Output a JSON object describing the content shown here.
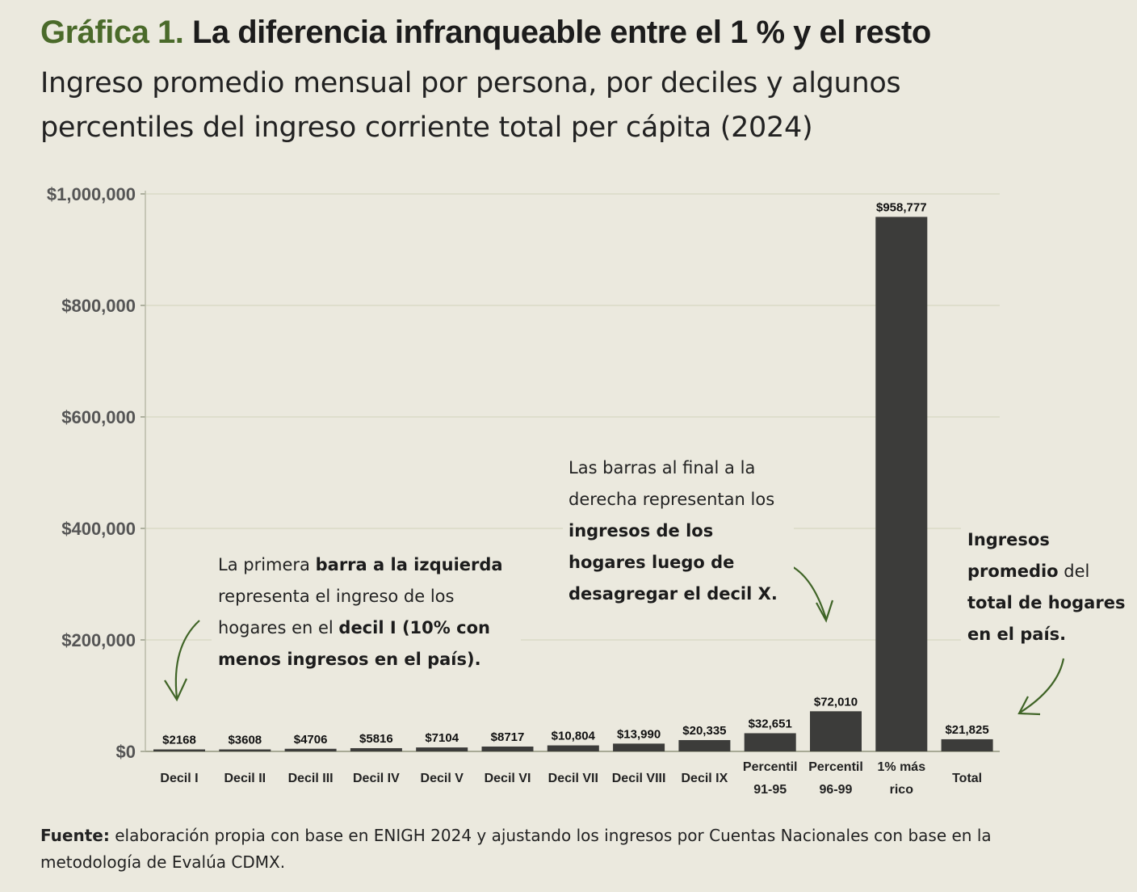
{
  "title": {
    "prefix": "Gráfica 1.",
    "main": "La diferencia infranqueable entre el 1 % y el resto"
  },
  "subtitle": "Ingreso promedio mensual por persona, por deciles y algunos percentiles del ingreso corriente total per cápita (2024)",
  "chart_data": {
    "type": "bar",
    "categories": [
      "Decil I",
      "Decil II",
      "Decil III",
      "Decil IV",
      "Decil V",
      "Decil VI",
      "Decil VII",
      "Decil VIII",
      "Decil IX",
      "Percentil 91-95",
      "Percentil 96-99",
      "1% más rico",
      "Total"
    ],
    "category_lines": [
      [
        "Decil I"
      ],
      [
        "Decil II"
      ],
      [
        "Decil III"
      ],
      [
        "Decil IV"
      ],
      [
        "Decil V"
      ],
      [
        "Decil VI"
      ],
      [
        "Decil VII"
      ],
      [
        "Decil VIII"
      ],
      [
        "Decil IX"
      ],
      [
        "Percentil",
        "91-95"
      ],
      [
        "Percentil",
        "96-99"
      ],
      [
        "1% más",
        "rico"
      ],
      [
        "Total"
      ]
    ],
    "values": [
      2168,
      3608,
      4706,
      5816,
      7104,
      8717,
      10804,
      13990,
      20335,
      32651,
      72010,
      958777,
      21825
    ],
    "data_labels": [
      "$2168",
      "$3608",
      "$4706",
      "$5816",
      "$7104",
      "$8717",
      "$10,804",
      "$13,990",
      "$20,335",
      "$32,651",
      "$72,010",
      "$958,777",
      "$21,825"
    ],
    "ylim": [
      0,
      1000000
    ],
    "yticks": [
      0,
      200000,
      400000,
      600000,
      800000,
      1000000
    ],
    "ytick_labels": [
      "$0",
      "$200,000",
      "$400,000",
      "$600,000",
      "$800,000",
      "$1,000,000"
    ],
    "grid": true,
    "bar_color": "#3c3c3a",
    "xlabel": "",
    "ylabel": ""
  },
  "annotations": {
    "left_note": {
      "segments": [
        {
          "t": "La primera ",
          "b": false
        },
        {
          "t": "barra a la izquierda",
          "b": true
        },
        {
          "t": " representa el ingreso de los hogares en el ",
          "b": false
        },
        {
          "t": "decil I (10% con menos ingresos en el país).",
          "b": true
        }
      ]
    },
    "middle_note": {
      "segments": [
        {
          "t": "Las barras al final a la derecha representan los ",
          "b": false
        },
        {
          "t": "ingresos de los hogares luego de desagregar el decil X.",
          "b": true
        }
      ]
    },
    "right_note": {
      "segments": [
        {
          "t": "Ingresos promedio",
          "b": true
        },
        {
          "t": " del ",
          "b": false
        },
        {
          "t": "total de hogares en el país.",
          "b": true
        }
      ]
    },
    "arrow_color": "#3f6426"
  },
  "source": {
    "label": "Fuente:",
    "text": " elaboración propia con base en ENIGH 2024 y ajustando los ingresos por Cuentas Nacionales con base en la metodología de Evalúa CDMX."
  },
  "colors": {
    "background": "#ebe9de",
    "title_accent": "#4a6a2a",
    "grid": "#d9dbc6"
  }
}
